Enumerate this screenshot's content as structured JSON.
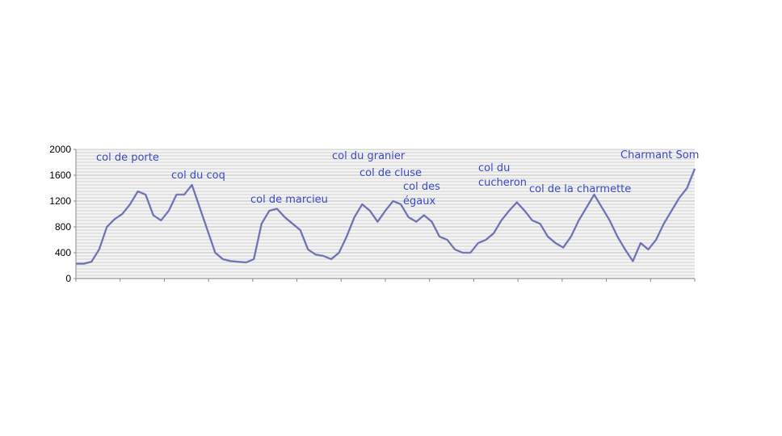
{
  "chart_data": {
    "type": "line",
    "values": [
      230,
      230,
      260,
      450,
      800,
      920,
      1000,
      1150,
      1350,
      1300,
      980,
      900,
      1050,
      1300,
      1300,
      1450,
      1100,
      750,
      400,
      300,
      270,
      260,
      250,
      300,
      850,
      1050,
      1080,
      950,
      850,
      750,
      450,
      370,
      350,
      300,
      400,
      650,
      950,
      1150,
      1050,
      880,
      1050,
      1200,
      1150,
      950,
      880,
      980,
      880,
      650,
      600,
      450,
      400,
      400,
      550,
      600,
      700,
      900,
      1050,
      1180,
      1050,
      900,
      850,
      650,
      550,
      480,
      650,
      900,
      1100,
      1300,
      1100,
      900,
      650,
      450,
      270,
      550,
      450,
      600,
      850,
      1050,
      1250,
      1400,
      1700
    ],
    "color": "#8589c6",
    "ylim": [
      0,
      2000
    ],
    "yticks": [
      0,
      400,
      800,
      1200,
      1600,
      2000
    ],
    "grid": true,
    "annotations": [
      [
        "col de porte"
      ],
      [
        "col du coq"
      ],
      [
        "col de marcieu"
      ],
      [
        "col du granier"
      ],
      [
        "col de cluse"
      ],
      [
        "col des",
        "égaux"
      ],
      [
        "col du",
        "cucheron"
      ],
      [
        "col de la charmette"
      ],
      [
        "Charmant Som"
      ]
    ]
  }
}
